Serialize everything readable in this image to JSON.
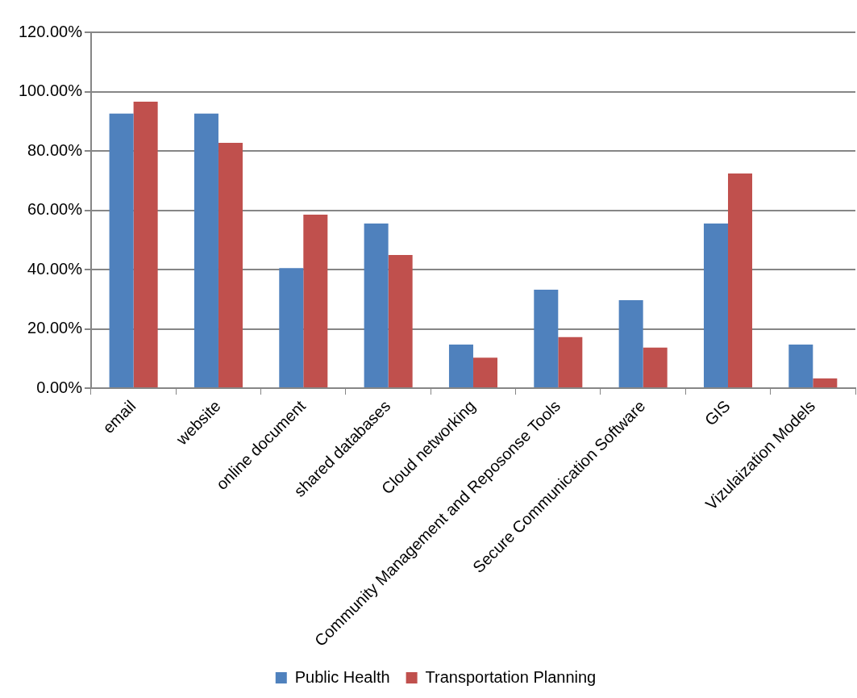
{
  "chart_data": {
    "type": "bar",
    "categories": [
      "email",
      "website",
      "online document",
      "shared databases",
      "Cloud networking",
      "Community Management and Reposonse Tools",
      "Secure Communication Software",
      "GIS",
      "Vizulaization Models"
    ],
    "series": [
      {
        "name": "Public Health",
        "color": "#4f81bd",
        "values": [
          92.6,
          92.6,
          40.5,
          55.5,
          14.7,
          33.2,
          29.7,
          55.5,
          14.7
        ]
      },
      {
        "name": "Transportation Planning",
        "color": "#c0504d",
        "values": [
          96.6,
          82.7,
          58.5,
          44.9,
          10.3,
          17.2,
          13.7,
          72.4,
          3.3
        ]
      }
    ],
    "ylim": [
      0,
      120
    ],
    "yticks": [
      {
        "value": 0,
        "label": "0.00%"
      },
      {
        "value": 20,
        "label": "20.00%"
      },
      {
        "value": 40,
        "label": "40.00%"
      },
      {
        "value": 60,
        "label": "60.00%"
      },
      {
        "value": 80,
        "label": "80.00%"
      },
      {
        "value": 100,
        "label": "100.00%"
      },
      {
        "value": 120,
        "label": "120.00%"
      }
    ],
    "grid": "y",
    "legend": "bottom"
  }
}
